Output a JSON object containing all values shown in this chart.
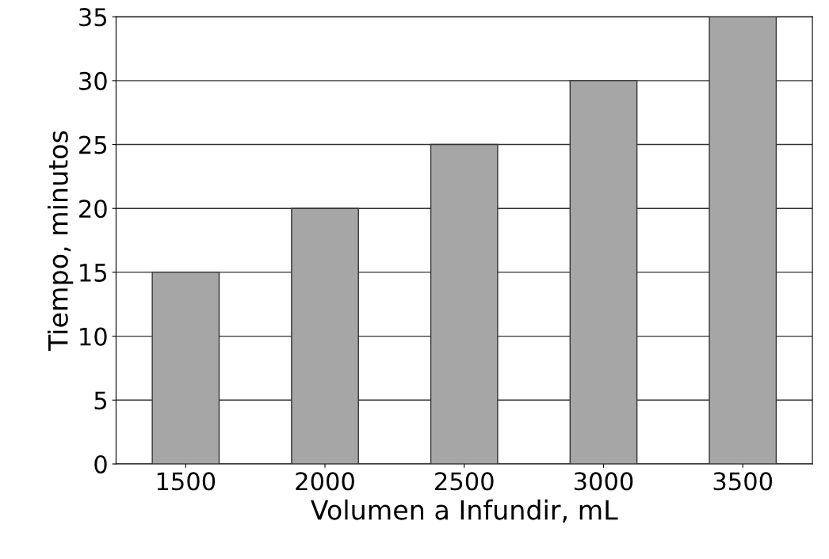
{
  "chart_data": {
    "type": "bar",
    "xlabel": "Volumen a Infundir, mL",
    "ylabel": "Tiempo, minutos",
    "categories": [
      "1500",
      "2000",
      "2500",
      "3000",
      "3500"
    ],
    "values": [
      15,
      20,
      25,
      30,
      35
    ],
    "color": "#a6a6a6",
    "ylim": [
      0,
      35
    ],
    "yticks": [
      0,
      5,
      10,
      15,
      20,
      25,
      30,
      35
    ],
    "grid": "y"
  }
}
